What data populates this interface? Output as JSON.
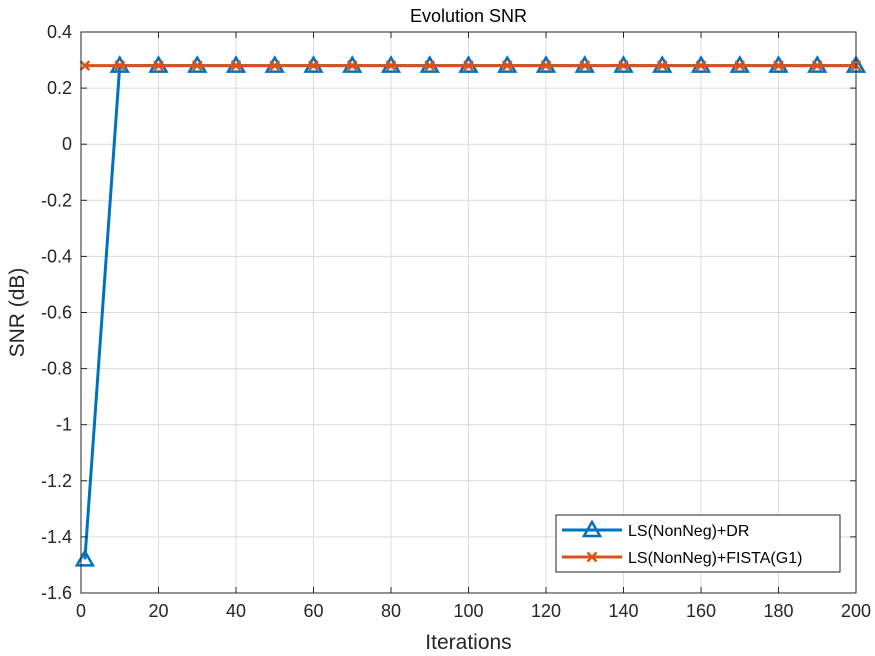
{
  "chart_data": {
    "type": "line",
    "title": "Evolution SNR",
    "xlabel": "Iterations",
    "ylabel": "SNR (dB)",
    "xlim": [
      0,
      200
    ],
    "ylim": [
      -1.6,
      0.4
    ],
    "xticks": [
      0,
      20,
      40,
      60,
      80,
      100,
      120,
      140,
      160,
      180,
      200
    ],
    "yticks": [
      -1.6,
      -1.4,
      -1.2,
      -1,
      -0.8,
      -0.6,
      -0.4,
      -0.2,
      0,
      0.2,
      0.4
    ],
    "grid": true,
    "legend_position": "bottom-right",
    "series": [
      {
        "name": "LS(NonNeg)+DR",
        "color": "#0072BD",
        "marker": "triangle",
        "x": [
          1,
          10,
          20,
          30,
          40,
          50,
          60,
          70,
          80,
          90,
          100,
          110,
          120,
          130,
          140,
          150,
          160,
          170,
          180,
          190,
          200
        ],
        "y": [
          -1.48,
          0.28,
          0.28,
          0.28,
          0.28,
          0.28,
          0.28,
          0.28,
          0.28,
          0.28,
          0.28,
          0.28,
          0.28,
          0.28,
          0.28,
          0.28,
          0.28,
          0.28,
          0.28,
          0.28,
          0.28
        ]
      },
      {
        "name": "LS(NonNeg)+FISTA(G1)",
        "color": "#D95319",
        "marker": "x",
        "x": [
          1,
          10,
          20,
          30,
          40,
          50,
          60,
          70,
          80,
          90,
          100,
          110,
          120,
          130,
          140,
          150,
          160,
          170,
          180,
          190,
          200
        ],
        "y": [
          0.28,
          0.28,
          0.28,
          0.28,
          0.28,
          0.28,
          0.28,
          0.28,
          0.28,
          0.28,
          0.28,
          0.28,
          0.28,
          0.28,
          0.28,
          0.28,
          0.28,
          0.28,
          0.28,
          0.28,
          0.28
        ]
      }
    ]
  }
}
